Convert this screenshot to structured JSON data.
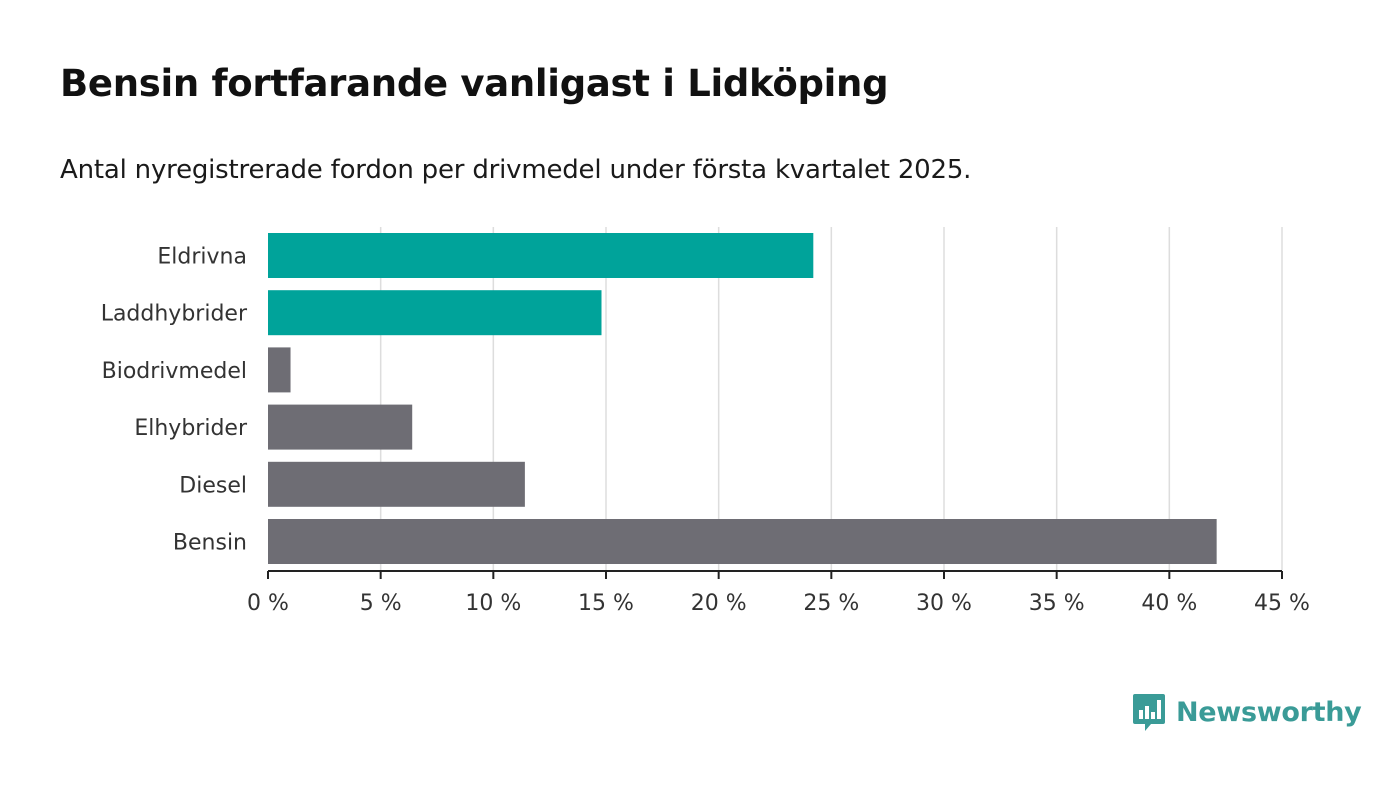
{
  "header": {
    "title": "Bensin fortfarande vanligast i Lidköping",
    "subtitle": "Antal nyregistrerade fordon per drivmedel under första kvartalet 2025."
  },
  "chart_data": {
    "type": "bar",
    "orientation": "horizontal",
    "title": "Bensin fortfarande vanligast i Lidköping",
    "subtitle": "Antal nyregistrerade fordon per drivmedel under första kvartalet 2025.",
    "categories": [
      "Eldrivna",
      "Laddhybrider",
      "Biodrivmedel",
      "Elhybrider",
      "Diesel",
      "Bensin"
    ],
    "values": [
      24.2,
      14.8,
      1.0,
      6.4,
      11.4,
      42.1
    ],
    "bar_colors": [
      "#00a39a",
      "#00a39a",
      "#6e6d74",
      "#6e6d74",
      "#6e6d74",
      "#6e6d74"
    ],
    "xlim": [
      0,
      45
    ],
    "xticks": [
      0,
      5,
      10,
      15,
      20,
      25,
      30,
      35,
      40,
      45
    ],
    "xtick_labels": [
      "0 %",
      "5 %",
      "10 %",
      "15 %",
      "20 %",
      "25 %",
      "30 %",
      "35 %",
      "40 %",
      "45 %"
    ],
    "xlabel": "",
    "ylabel": "",
    "grid": "vertical",
    "gridline_color": "#dddddd",
    "axis_color": "#222222"
  },
  "branding": {
    "logo_text": "Newsworthy",
    "logo_icon": "bar-chart-speech-bubble-icon",
    "color": "#3a9b97"
  }
}
